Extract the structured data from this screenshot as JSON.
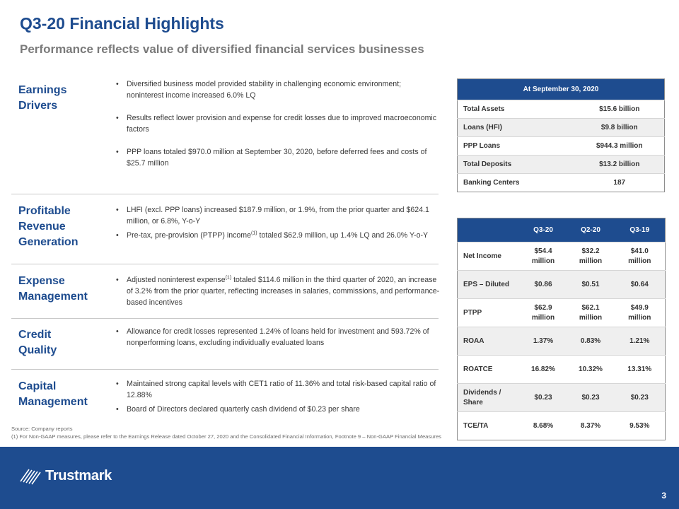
{
  "title": "Q3-20 Financial Highlights",
  "subtitle": "Performance reflects value of diversified financial services businesses",
  "sections": [
    {
      "heading_lines": [
        "Earnings",
        "Drivers"
      ],
      "bullets": [
        {
          "text": "Diversified business model provided stability in challenging economic environment; noninterest income increased 6.0% LQ"
        },
        {
          "text": "Results reflect lower provision and expense for credit losses due to improved macroeconomic factors"
        },
        {
          "text": "PPP loans totaled $970.0 million at September 30, 2020, before deferred fees and costs of $25.7 million"
        }
      ]
    },
    {
      "heading_lines": [
        "Profitable",
        "Revenue",
        "Generation"
      ],
      "bullets": [
        {
          "text": "LHFI (excl. PPP loans) increased $187.9 million, or 1.9%, from the prior quarter and $624.1 million, or 6.8%, Y-o-Y"
        },
        {
          "pre": "Pre-tax, pre-provision (PTPP) income",
          "sup": "(1)",
          "post": " totaled $62.9 million, up 1.4% LQ and 26.0% Y-o-Y"
        }
      ]
    },
    {
      "heading_lines": [
        "Expense",
        "Management"
      ],
      "bullets": [
        {
          "pre": "Adjusted noninterest expense",
          "sup": "(1)",
          "post": " totaled $114.6 million in the third quarter of 2020, an increase of 3.2% from the prior quarter, reflecting increases in salaries, commissions, and performance-based incentives"
        }
      ]
    },
    {
      "heading_lines": [
        "Credit",
        "Quality"
      ],
      "bullets": [
        {
          "text": "Allowance for credit losses represented 1.24% of loans held for investment and 593.72% of nonperforming loans, excluding individually evaluated loans"
        }
      ]
    },
    {
      "heading_lines": [
        "Capital",
        "Management"
      ],
      "bullets": [
        {
          "text": "Maintained strong capital levels with CET1 ratio of 11.36% and total risk-based capital ratio of 12.88%"
        },
        {
          "text": "Board of Directors declared quarterly cash dividend of $0.23 per share"
        }
      ]
    }
  ],
  "assets_table": {
    "header": "At September 30, 2020",
    "rows": [
      {
        "label": "Total Assets",
        "value": "$15.6 billion"
      },
      {
        "label": "Loans (HFI)",
        "value": "$9.8 billion"
      },
      {
        "label": "PPP Loans",
        "value": "$944.3 million"
      },
      {
        "label": "Total Deposits",
        "value": "$13.2 billion"
      },
      {
        "label": "Banking Centers",
        "value": "187"
      }
    ]
  },
  "metrics_table": {
    "columns": [
      "",
      "Q3-20",
      "Q2-20",
      "Q3-19"
    ],
    "rows": [
      {
        "label": [
          "Net Income"
        ],
        "values": [
          [
            "$54.4",
            "million"
          ],
          [
            "$32.2",
            "million"
          ],
          [
            "$41.0",
            "million"
          ]
        ]
      },
      {
        "label": [
          "EPS – Diluted"
        ],
        "values": [
          [
            "$0.86"
          ],
          [
            "$0.51"
          ],
          [
            "$0.64"
          ]
        ]
      },
      {
        "label": [
          "PTPP"
        ],
        "values": [
          [
            "$62.9",
            "million"
          ],
          [
            "$62.1",
            "million"
          ],
          [
            "$49.9",
            "million"
          ]
        ]
      },
      {
        "label": [
          "ROAA"
        ],
        "values": [
          [
            "1.37%"
          ],
          [
            "0.83%"
          ],
          [
            "1.21%"
          ]
        ]
      },
      {
        "label": [
          "ROATCE"
        ],
        "values": [
          [
            "16.82%"
          ],
          [
            "10.32%"
          ],
          [
            "13.31%"
          ]
        ]
      },
      {
        "label": [
          "Dividends /",
          "Share"
        ],
        "values": [
          [
            "$0.23"
          ],
          [
            "$0.23"
          ],
          [
            "$0.23"
          ]
        ]
      },
      {
        "label": [
          "TCE/TA"
        ],
        "values": [
          [
            "8.68%"
          ],
          [
            "8.37%"
          ],
          [
            "9.53%"
          ]
        ]
      }
    ]
  },
  "source_lines": [
    "Source: Company reports",
    "(1) For Non-GAAP measures, please refer to the Earnings Release dated October 27, 2020 and the Consolidated Financial Information, Footnote 9 – Non-GAAP Financial Measures"
  ],
  "footer": {
    "logo_text": "Trustmark",
    "logo_icon": "trustmark-logo-icon",
    "page_number": "3",
    "bg_color": "#1e4c8f"
  },
  "colors": {
    "accent": "#1e4c8f",
    "subtitle": "#7a7a7a",
    "alt_row": "#efefef"
  }
}
